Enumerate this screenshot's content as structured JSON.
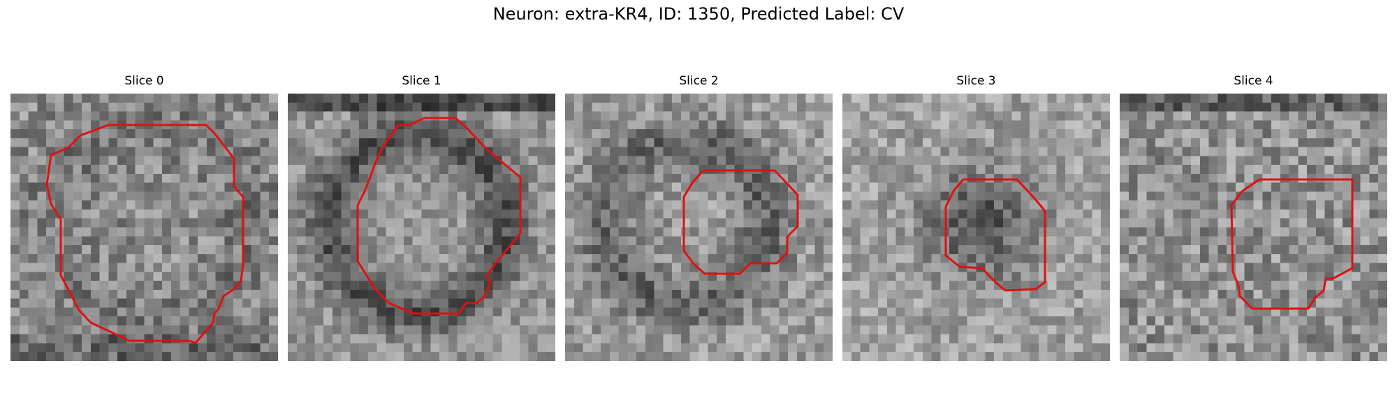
{
  "figure": {
    "title": "Neuron: extra-KR4, ID: 1350, Predicted Label: CV"
  },
  "panels": [
    {
      "title": "Slice 0"
    },
    {
      "title": "Slice 1"
    },
    {
      "title": "Slice 2"
    },
    {
      "title": "Slice 3"
    },
    {
      "title": "Slice 4"
    }
  ],
  "colors": {
    "contour": "#e01010"
  }
}
